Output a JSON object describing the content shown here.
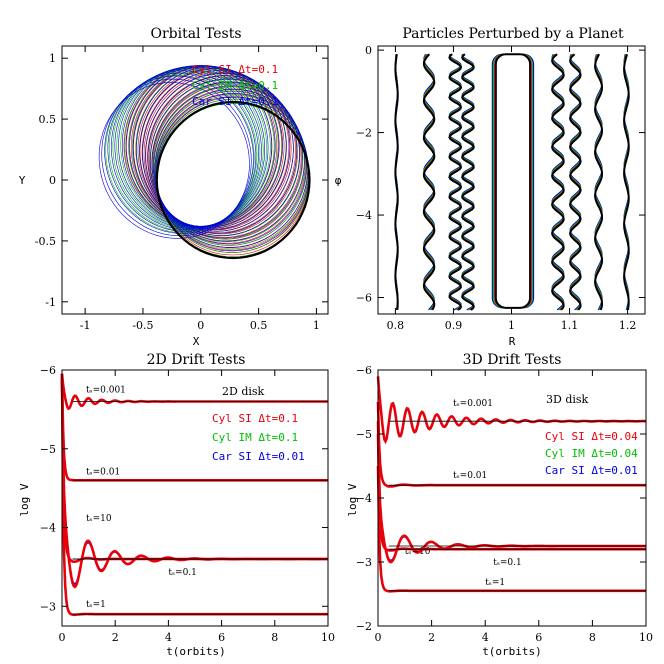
{
  "colors": {
    "red": "#e8000b",
    "green": "#00c000",
    "blue": "#0000e0",
    "black": "#000000"
  },
  "chart_data": [
    {
      "type": "line",
      "title": "Orbital Tests",
      "xlabel": "X",
      "ylabel": "Y",
      "xlim": [
        -1.2,
        1.1
      ],
      "ylim": [
        -1.1,
        1.1
      ],
      "xticks": [
        -1,
        -0.5,
        0,
        0.5,
        1
      ],
      "xtick_labels": [
        "-1",
        "-0.5",
        "0",
        "0.5",
        "1"
      ],
      "yticks": [
        -1,
        -0.5,
        0,
        0.5,
        1
      ],
      "ytick_labels": [
        "-1",
        "-0.5",
        "0",
        "0.5",
        "1"
      ],
      "legend_position": "top-right",
      "series": [
        {
          "name": "Cyl SI Δt=0.1",
          "color": "#e8000b",
          "orbit_count": 22,
          "precession_deg": [
            5,
            95
          ],
          "semi_axes": [
            0.66,
            0.64
          ]
        },
        {
          "name": "Cyl IM Δt=0.1",
          "color": "#00c000",
          "orbit_count": 20,
          "precession_deg": [
            0,
            130
          ],
          "semi_axes": [
            0.66,
            0.63
          ]
        },
        {
          "name": "Car SI Δt=0.1",
          "color": "#0000e0",
          "orbit_count": 22,
          "precession_deg": [
            10,
            145
          ],
          "semi_axes": [
            0.66,
            0.63
          ]
        },
        {
          "name": "reference orbit",
          "color": "#000000",
          "orbit_count": 1,
          "precession_deg": [
            0,
            0
          ],
          "semi_axes": [
            0.66,
            0.64
          ]
        }
      ]
    },
    {
      "type": "line",
      "title": "Particles Perturbed by a Planet",
      "xlabel": "R",
      "ylabel": "φ",
      "xlim": [
        0.77,
        1.23
      ],
      "ylim": [
        -6.4,
        0.1
      ],
      "xticks": [
        0.8,
        0.9,
        1,
        1.1,
        1.2
      ],
      "xtick_labels": [
        "0.8",
        "0.9",
        "1",
        "1.1",
        "1.2"
      ],
      "yticks": [
        0,
        -2,
        -4,
        -6
      ],
      "ytick_labels": [
        "0",
        "−2",
        "−4",
        "−6"
      ],
      "streamlines": [
        {
          "r0": 0.802,
          "amp": 0.002,
          "waves": 5
        },
        {
          "r0": 0.858,
          "amp": 0.009,
          "waves": 7
        },
        {
          "r0": 0.903,
          "amp": 0.01,
          "waves": 13
        },
        {
          "r0": 0.925,
          "amp": 0.01,
          "waves": 13
        },
        {
          "r0": 1.08,
          "amp": 0.01,
          "waves": 9
        },
        {
          "r0": 1.11,
          "amp": 0.009,
          "waves": 9
        },
        {
          "r0": 1.15,
          "amp": 0.006,
          "waves": 6
        },
        {
          "r0": 1.198,
          "amp": 0.004,
          "waves": 5
        }
      ],
      "horseshoe": {
        "r_in": 0.97,
        "r_out": 1.035,
        "phi_top": -0.1,
        "phi_bottom": -6.25
      }
    },
    {
      "type": "line",
      "title": "2D Drift Tests",
      "xlabel": "t(orbits)",
      "ylabel": "log V",
      "xlim": [
        0,
        10
      ],
      "ylim": [
        -2.75,
        -6
      ],
      "xticks": [
        0,
        2,
        4,
        6,
        8,
        10
      ],
      "xtick_labels": [
        "0",
        "2",
        "4",
        "6",
        "8",
        "10"
      ],
      "yticks": [
        -3,
        -4,
        -5,
        -6
      ],
      "ytick_labels": [
        "−3",
        "−4",
        "−5",
        "−6"
      ],
      "disk_label": "2D disk",
      "legend_position": "right",
      "legend": [
        {
          "label": "Cyl SI Δt=0.1",
          "color": "#e8000b"
        },
        {
          "label": "Cyl IM Δt=0.1",
          "color": "#00c000"
        },
        {
          "label": "Car SI Δt=0.01",
          "color": "#0000e0"
        }
      ],
      "curves": [
        {
          "ts": "tₛ=0.001",
          "label": "ts=0.001",
          "final": -5.6,
          "start": -5.95,
          "amp": 0.12,
          "decay": 1.2,
          "period": 0.5
        },
        {
          "ts": "tₛ=0.01",
          "label": "ts=0.01",
          "final": -4.6,
          "start": -5.9,
          "amp": 0.0,
          "decay": 3.0,
          "period": 1.0
        },
        {
          "ts": "tₛ=10",
          "label": "ts=10",
          "final": -3.6,
          "start": -5.95,
          "amp": 0.48,
          "decay": 0.85,
          "period": 1.0
        },
        {
          "ts": "tₛ=0.1",
          "label": "ts=0.1",
          "final": -3.6,
          "start": -5.9,
          "amp": 0.08,
          "decay": 2.0,
          "period": 1.0
        },
        {
          "ts": "tₛ=1",
          "label": "ts=1",
          "final": -2.9,
          "start": -5.95,
          "amp": 0.03,
          "decay": 3.0,
          "period": 1.0
        }
      ]
    },
    {
      "type": "line",
      "title": "3D Drift Tests",
      "xlabel": "t(orbits)",
      "ylabel": "log V",
      "xlim": [
        0,
        10
      ],
      "ylim": [
        -2,
        -6
      ],
      "xticks": [
        0,
        2,
        4,
        6,
        8,
        10
      ],
      "xtick_labels": [
        "0",
        "2",
        "4",
        "6",
        "8",
        "10"
      ],
      "yticks": [
        -2,
        -3,
        -4,
        -5,
        -6
      ],
      "ytick_labels": [
        "−2",
        "−3",
        "−4",
        "−5",
        "−6"
      ],
      "disk_label": "3D disk",
      "legend_position": "right",
      "legend": [
        {
          "label": "Cyl SI Δt=0.04",
          "color": "#e8000b"
        },
        {
          "label": "Cyl IM Δt=0.04",
          "color": "#00c000"
        },
        {
          "label": "Car SI Δt=0.01",
          "color": "#0000e0"
        }
      ],
      "curves": [
        {
          "ts": "tₛ=0.001",
          "label": "ts=0.001",
          "final": -5.2,
          "start": -5.9,
          "amp": 0.35,
          "decay": 0.6,
          "period": 0.55
        },
        {
          "ts": "tₛ=0.01",
          "label": "ts=0.01",
          "final": -4.2,
          "start": -5.5,
          "amp": 0.05,
          "decay": 2.0,
          "period": 1.0
        },
        {
          "ts": "tₛ=10",
          "label": "ts=10",
          "final": -3.25,
          "start": -5.2,
          "amp": 0.35,
          "decay": 0.9,
          "period": 1.0
        },
        {
          "ts": "tₛ=0.1",
          "label": "ts=0.1",
          "final": -3.2,
          "start": -5.0,
          "amp": 0.05,
          "decay": 2.0,
          "period": 1.0
        },
        {
          "ts": "tₛ=1",
          "label": "ts=1",
          "final": -2.55,
          "start": -4.5,
          "amp": 0.03,
          "decay": 3.0,
          "period": 1.0
        }
      ]
    }
  ]
}
